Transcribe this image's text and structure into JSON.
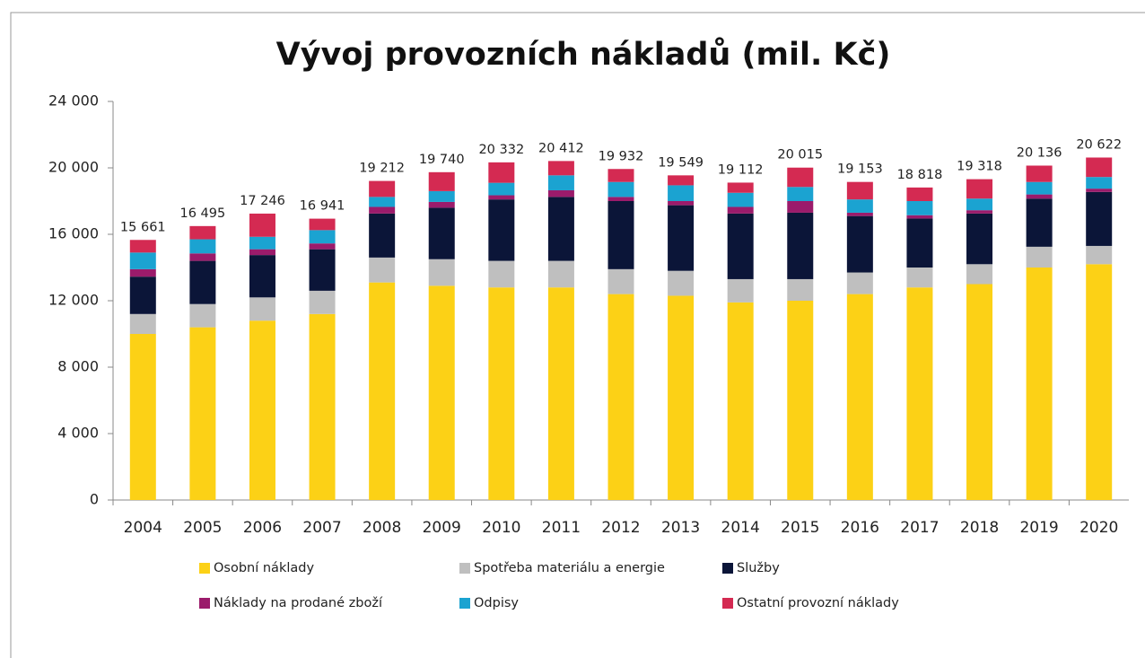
{
  "chart_data": {
    "type": "stacked_bar",
    "title": "Vývoj provozních nákladů (mil. Kč)",
    "categories": [
      "2004",
      "2005",
      "2006",
      "2007",
      "2008",
      "2009",
      "2010",
      "2011",
      "2012",
      "2013",
      "2014",
      "2015",
      "2016",
      "2017",
      "2018",
      "2019",
      "2020"
    ],
    "series": [
      {
        "name": "Osobní náklady",
        "color": "#fcd116",
        "values": [
          10000,
          10400,
          10800,
          11200,
          13100,
          12900,
          12800,
          12800,
          12400,
          12300,
          11900,
          12000,
          12400,
          12800,
          13000,
          14000,
          14200
        ]
      },
      {
        "name": "Spotřeba materiálu a energie",
        "color": "#bfbfbf",
        "values": [
          1200,
          1400,
          1400,
          1400,
          1500,
          1600,
          1600,
          1600,
          1500,
          1500,
          1400,
          1300,
          1300,
          1200,
          1200,
          1250,
          1100
        ]
      },
      {
        "name": "Služby",
        "color": "#0b1538",
        "values": [
          2250,
          2600,
          2550,
          2500,
          2650,
          3100,
          3700,
          3850,
          4100,
          3950,
          3950,
          4000,
          3400,
          2950,
          3050,
          2900,
          3250
        ]
      },
      {
        "name": "Náklady na prodané zboží",
        "color": "#9b1b6b",
        "values": [
          450,
          450,
          350,
          350,
          400,
          350,
          250,
          400,
          250,
          250,
          400,
          700,
          200,
          200,
          200,
          250,
          200
        ]
      },
      {
        "name": "Odpisy",
        "color": "#1ba3d1",
        "values": [
          1000,
          850,
          750,
          800,
          600,
          650,
          750,
          900,
          900,
          950,
          850,
          850,
          800,
          850,
          700,
          750,
          700
        ]
      },
      {
        "name": "Ostatní provozní náklady",
        "color": "#d42a52",
        "values": [
          761,
          795,
          1396,
          691,
          962,
          1140,
          1232,
          862,
          782,
          599,
          612,
          1165,
          1053,
          818,
          1168,
          986,
          1172
        ]
      }
    ],
    "totals": [
      15661,
      16495,
      17246,
      16941,
      19212,
      19740,
      20332,
      20412,
      19932,
      19549,
      19112,
      20015,
      19153,
      18818,
      19318,
      20136,
      20622
    ],
    "total_labels": [
      "15 661",
      "16 495",
      "17 246",
      "16 941",
      "19 212",
      "19 740",
      "20 332",
      "20 412",
      "19 932",
      "19 549",
      "19 112",
      "20 015",
      "19 153",
      "18 818",
      "19 318",
      "20 136",
      "20 622"
    ],
    "ylim": [
      0,
      24000
    ],
    "yticks": [
      0,
      {
        "value": 4000,
        "label": "4 000"
      },
      {
        "value": 8000,
        "label": "8 000"
      },
      {
        "value": 12000,
        "label": "12 000"
      },
      {
        "value": 16000,
        "label": "16 000"
      },
      {
        "value": 20000,
        "label": "20 000"
      },
      {
        "value": 24000,
        "label": "24 000"
      }
    ],
    "grid": false,
    "legend_position": "bottom"
  }
}
